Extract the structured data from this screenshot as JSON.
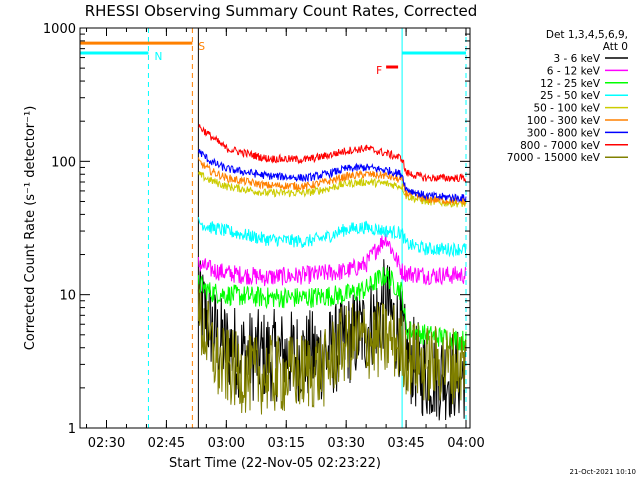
{
  "chart_data": {
    "type": "line",
    "title": "RHESSI Observing Summary Count Rates, Corrected",
    "xlabel": "Start Time (22-Nov-05 02:23:22)",
    "ylabel": "Corrected Count Rate (s⁻¹ detector⁻¹)",
    "y_scale": "log",
    "ylim": [
      1,
      1000
    ],
    "xlim": [
      "02:23:22",
      "04:01:00"
    ],
    "x_ticks": [
      "02:30",
      "02:45",
      "03:00",
      "03:15",
      "03:30",
      "03:45",
      "04:00"
    ],
    "y_ticks": [
      "1",
      "10",
      "100",
      "1000"
    ],
    "legend": {
      "header": [
        "Det 1,3,4,5,6,9,",
        "Att 0"
      ],
      "position": "right"
    },
    "flags": [
      {
        "label": "N",
        "color": "#00ffff",
        "segments": [
          [
            "02:23:22",
            "02:40:30"
          ],
          [
            "03:44:00",
            "04:00:00"
          ]
        ],
        "y": 650
      },
      {
        "label": "S",
        "color": "#ff8000",
        "segments": [
          [
            "02:23:22",
            "02:51:30"
          ]
        ],
        "y": 770
      },
      {
        "label": "F",
        "color": "#ff0000",
        "segments": [
          [
            "03:40:00",
            "03:43:00"
          ]
        ],
        "y": 510
      }
    ],
    "vertical_markers": [
      {
        "time": "02:23:22",
        "color": "#00ffff",
        "style": "dashed"
      },
      {
        "time": "02:40:30",
        "color": "#00ffff",
        "style": "dashed"
      },
      {
        "time": "02:51:30",
        "color": "#ff8000",
        "style": "dashed"
      },
      {
        "time": "02:53:00",
        "color": "#000000",
        "style": "solid"
      },
      {
        "time": "03:44:00",
        "color": "#00ffff",
        "style": "solid"
      },
      {
        "time": "04:00:00",
        "color": "#00ffff",
        "style": "dashed"
      }
    ],
    "series": [
      {
        "name": "3 - 6 keV",
        "color": "#000000",
        "noise": 0.35,
        "x": [
          "02:53",
          "02:55",
          "02:58",
          "03:05",
          "03:15",
          "03:25",
          "03:30",
          "03:35",
          "03:38",
          "03:40",
          "03:42",
          "03:44",
          "03:45",
          "03:50",
          "03:55",
          "04:00"
        ],
        "y": [
          8.5,
          7.0,
          4.5,
          3.5,
          3.5,
          3.5,
          4.5,
          5.5,
          7.0,
          9.0,
          6.0,
          5.0,
          3.5,
          2.5,
          2.5,
          2.5
        ]
      },
      {
        "name": "6 - 12 keV",
        "color": "#ff00ff",
        "noise": 0.07,
        "x": [
          "02:53",
          "02:56",
          "03:00",
          "03:10",
          "03:20",
          "03:30",
          "03:35",
          "03:38",
          "03:40",
          "03:42",
          "03:44",
          "03:45",
          "03:50",
          "04:00"
        ],
        "y": [
          17,
          15.5,
          14.5,
          13.5,
          14,
          15,
          17,
          23,
          27,
          20,
          15,
          14.5,
          14,
          14
        ]
      },
      {
        "name": "12 - 25 keV",
        "color": "#00ff00",
        "noise": 0.08,
        "x": [
          "02:53",
          "02:56",
          "03:00",
          "03:10",
          "03:20",
          "03:30",
          "03:35",
          "03:38",
          "03:40",
          "03:42",
          "03:44",
          "03:45",
          "03:50",
          "04:00"
        ],
        "y": [
          12,
          10.5,
          10,
          9.5,
          9.5,
          10,
          11,
          13,
          14,
          12,
          10.5,
          5.5,
          5,
          4.5
        ]
      },
      {
        "name": "25 - 50 keV",
        "color": "#00ffff",
        "noise": 0.05,
        "x": [
          "02:53",
          "02:56",
          "03:00",
          "03:10",
          "03:20",
          "03:25",
          "03:30",
          "03:35",
          "03:40",
          "03:44",
          "03:45",
          "03:50",
          "04:00"
        ],
        "y": [
          35,
          32,
          30,
          26,
          25,
          27,
          31,
          32,
          30,
          29,
          24,
          22,
          22
        ]
      },
      {
        "name": "50 - 100 keV",
        "color": "#cccc00",
        "noise": 0.03,
        "x": [
          "02:53",
          "02:56",
          "03:00",
          "03:10",
          "03:20",
          "03:25",
          "03:30",
          "03:35",
          "03:40",
          "03:44",
          "03:45",
          "03:50",
          "04:00"
        ],
        "y": [
          80,
          72,
          65,
          58,
          58,
          62,
          68,
          70,
          68,
          65,
          55,
          50,
          48
        ]
      },
      {
        "name": "100 - 300 keV",
        "color": "#ff8000",
        "noise": 0.03,
        "x": [
          "02:53",
          "02:56",
          "03:00",
          "03:10",
          "03:20",
          "03:25",
          "03:30",
          "03:35",
          "03:40",
          "03:44",
          "03:45",
          "03:50",
          "04:00"
        ],
        "y": [
          100,
          85,
          75,
          66,
          65,
          70,
          77,
          80,
          78,
          72,
          58,
          52,
          50
        ]
      },
      {
        "name": "300 - 800 keV",
        "color": "#0000ff",
        "noise": 0.03,
        "x": [
          "02:53",
          "02:56",
          "03:00",
          "03:10",
          "03:20",
          "03:25",
          "03:30",
          "03:35",
          "03:40",
          "03:44",
          "03:45",
          "03:50",
          "04:00"
        ],
        "y": [
          120,
          100,
          88,
          78,
          75,
          80,
          88,
          90,
          86,
          80,
          62,
          55,
          53
        ]
      },
      {
        "name": "800 - 7000 keV",
        "color": "#ff0000",
        "noise": 0.03,
        "x": [
          "02:53",
          "02:56",
          "03:00",
          "03:10",
          "03:20",
          "03:25",
          "03:30",
          "03:35",
          "03:40",
          "03:44",
          "03:45",
          "03:50",
          "04:00"
        ],
        "y": [
          185,
          155,
          125,
          105,
          103,
          110,
          120,
          125,
          115,
          105,
          82,
          75,
          75
        ]
      },
      {
        "name": "7000 - 15000 keV",
        "color": "#808000",
        "noise": 0.3,
        "x": [
          "02:53",
          "02:55",
          "02:58",
          "03:05",
          "03:15",
          "03:25",
          "03:28",
          "03:32",
          "03:38",
          "03:42",
          "03:44",
          "03:45",
          "03:50",
          "04:00"
        ],
        "y": [
          6.5,
          5.0,
          3.0,
          2.5,
          2.5,
          2.8,
          4.0,
          4.5,
          4.5,
          4.5,
          4.0,
          3.5,
          3.0,
          3.0
        ]
      }
    ],
    "footer": "21-Oct-2021 10:10"
  }
}
